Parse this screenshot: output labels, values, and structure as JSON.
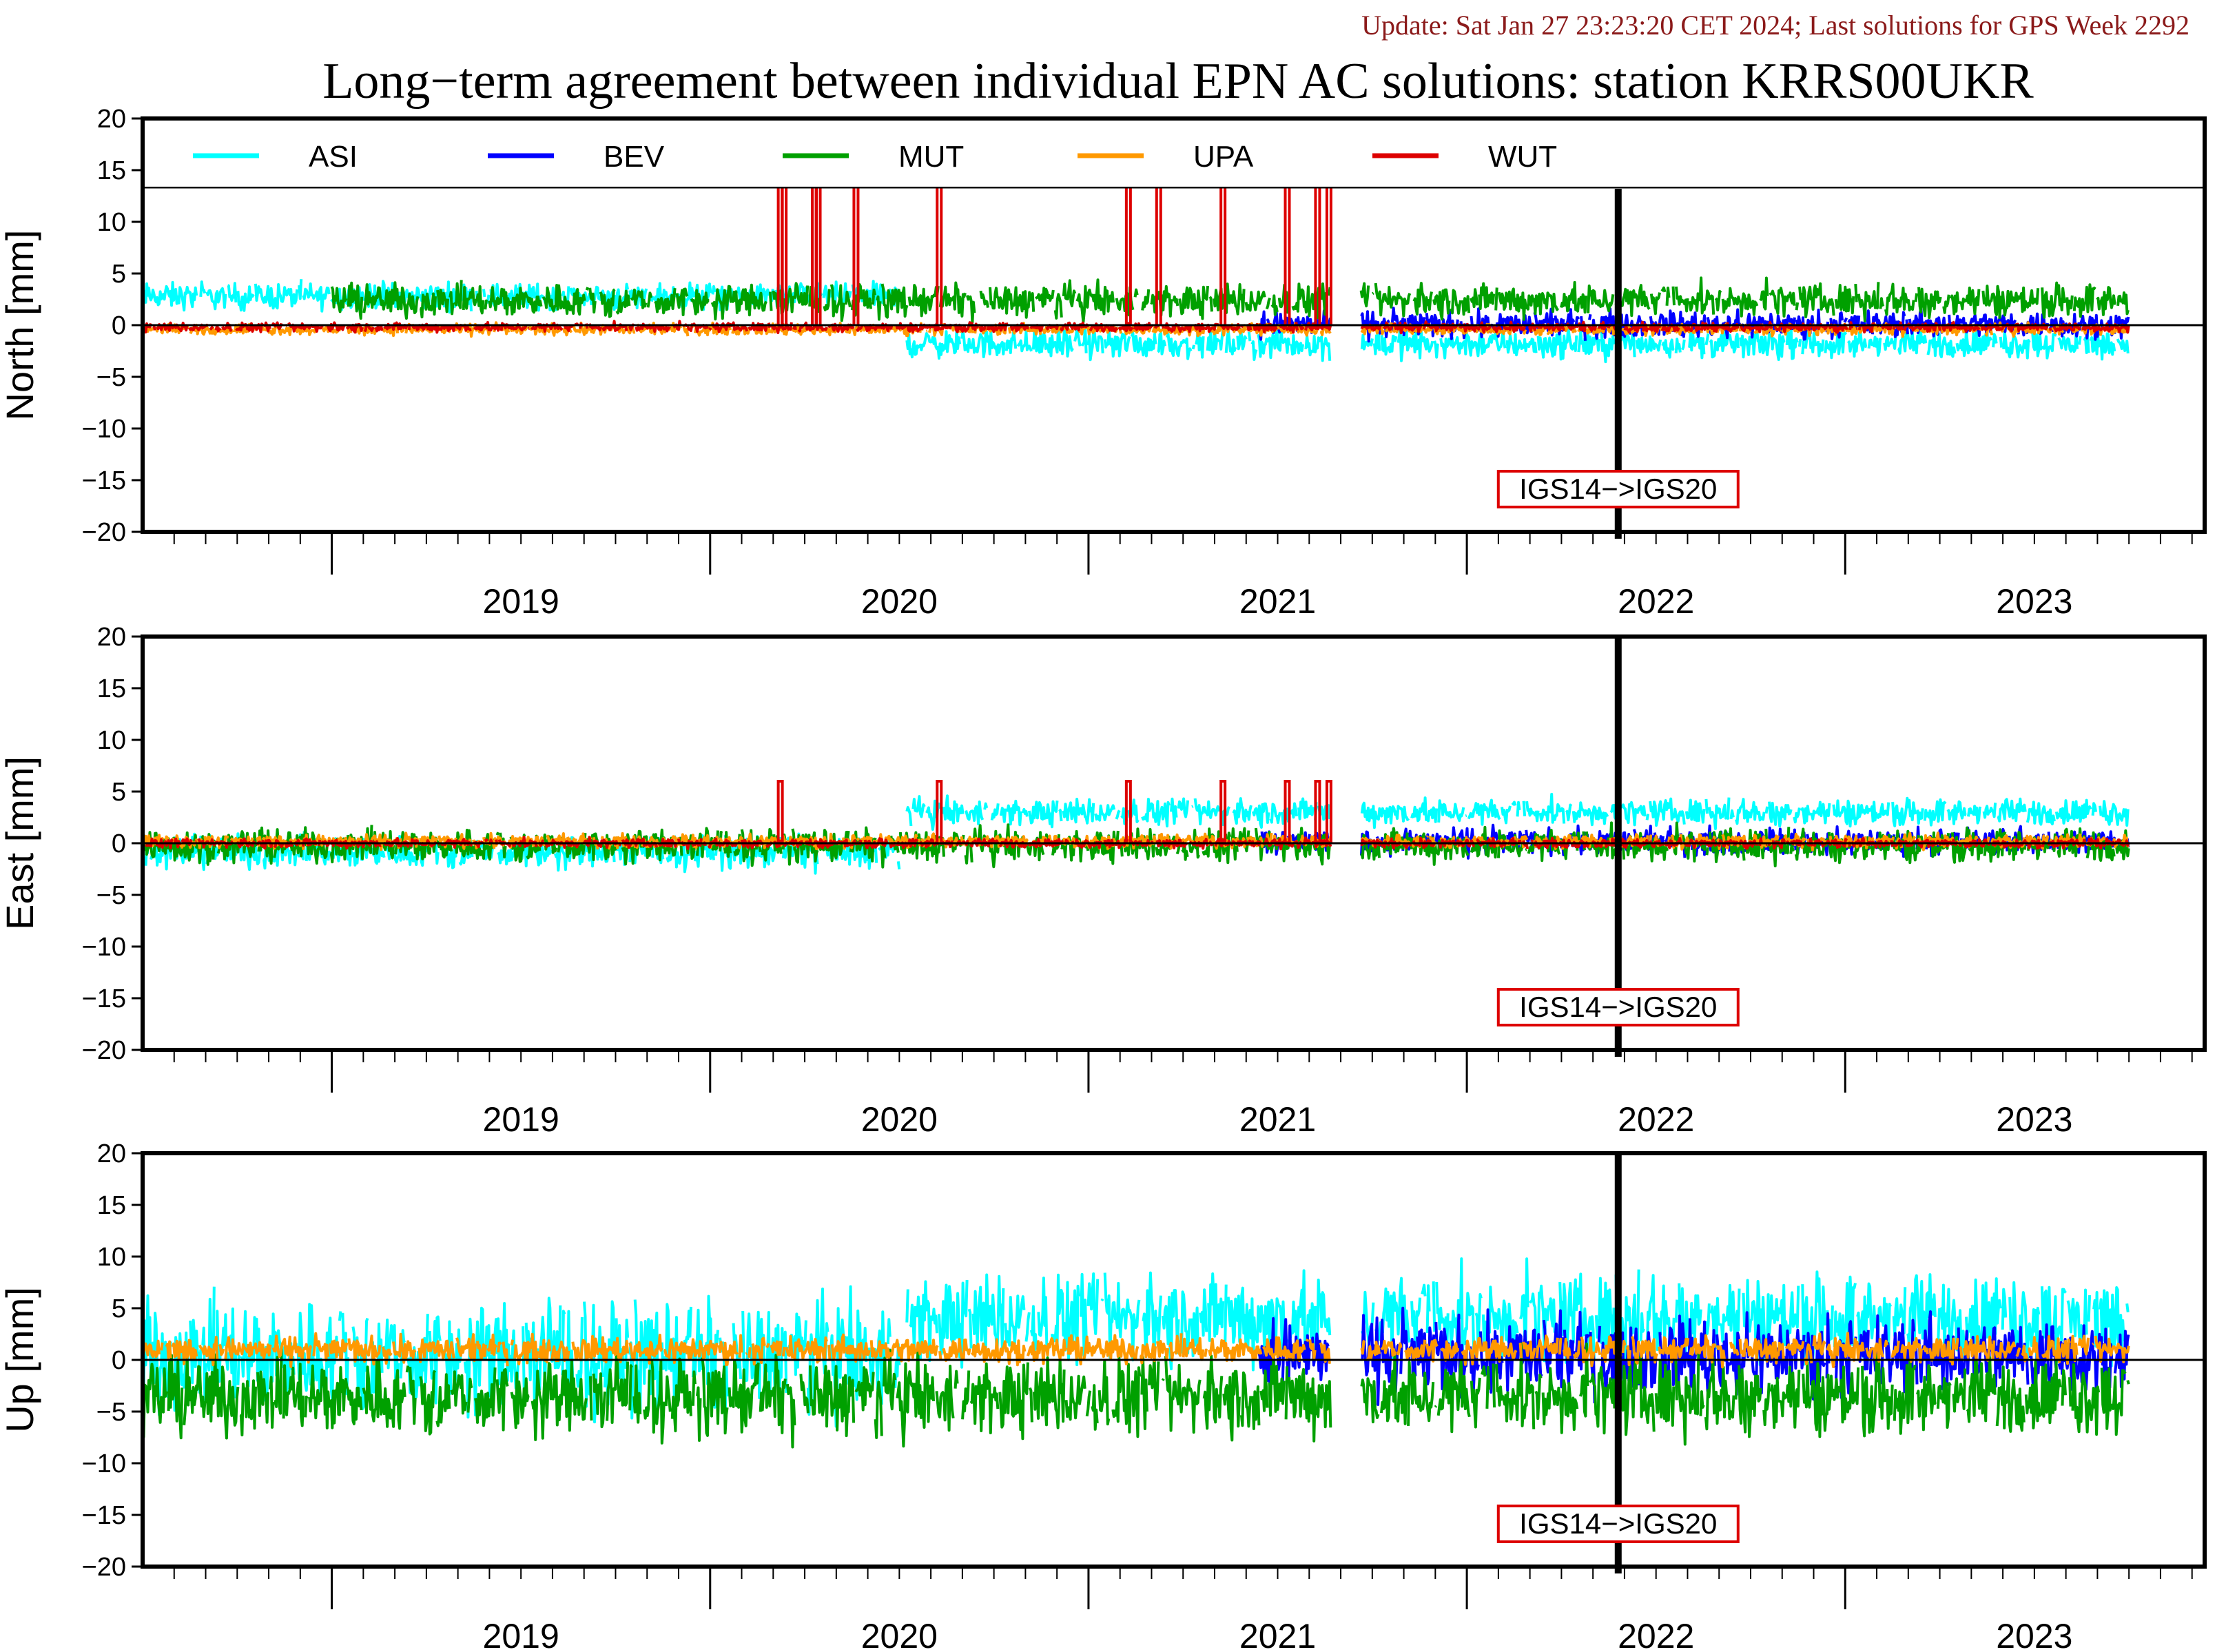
{
  "header": {
    "update": "Update: Sat Jan 27 23:23:20 CET 2024; Last solutions for GPS Week 2292",
    "title": "Long−term agreement between individual EPN AC solutions: station KRRS00UKR"
  },
  "colors": {
    "ASI": "#00ffff",
    "BEV": "#0000ff",
    "MUT": "#00a000",
    "UPA": "#ff9900",
    "WUT": "#dd0000",
    "update_text": "#8b1a1a",
    "annotation_border": "#dd0000"
  },
  "chart_data": {
    "type": "line",
    "x_unit": "year",
    "xlim": [
      2018.5,
      2023.95
    ],
    "ylim": [
      -20,
      20
    ],
    "yticks": [
      20,
      15,
      10,
      5,
      0,
      -5,
      -10,
      -15,
      -20
    ],
    "ytick_labels": [
      "20",
      "15",
      "10",
      "5",
      "0",
      "−5",
      "−10",
      "−15",
      "−20"
    ],
    "xtick_years": [
      "2019",
      "2020",
      "2021",
      "2022",
      "2023"
    ],
    "legend": [
      "ASI",
      "BEV",
      "MUT",
      "UPA",
      "WUT"
    ],
    "legend_placement": "top, inside first panel",
    "grid": false,
    "annotation": {
      "label": "IGS14−>IGS20",
      "x": 2022.4
    },
    "panels": [
      {
        "ylabel": "North [mm]",
        "series": [
          {
            "name": "ASI",
            "start": 2018.5,
            "end": 2023.75,
            "gaps": [
              [
                2020.5,
                2020.52
              ]
            ],
            "segments": [
              {
                "from": 2018.5,
                "to": 2020.5,
                "mean": 2.8,
                "amplitude": 1.2
              },
              {
                "from": 2020.52,
                "to": 2023.75,
                "mean": -1.8,
                "amplitude": 1.3
              }
            ]
          },
          {
            "name": "BEV",
            "start": 2021.45,
            "end": 2023.75,
            "segments": [
              {
                "from": 2021.45,
                "to": 2023.75,
                "mean": 0.1,
                "amplitude": 1.2
              }
            ]
          },
          {
            "name": "MUT",
            "start": 2019.0,
            "end": 2023.75,
            "segments": [
              {
                "from": 2019.0,
                "to": 2023.75,
                "mean": 2.4,
                "amplitude": 1.5
              }
            ]
          },
          {
            "name": "UPA",
            "start": 2018.5,
            "end": 2023.75,
            "segments": [
              {
                "from": 2018.5,
                "to": 2023.75,
                "mean": -0.4,
                "amplitude": 0.5
              }
            ]
          },
          {
            "name": "WUT",
            "start": 2018.5,
            "end": 2023.75,
            "segments": [
              {
                "from": 2018.5,
                "to": 2023.75,
                "mean": -0.2,
                "amplitude": 0.4
              }
            ],
            "spikes": [
              2020.18,
              2020.19,
              2020.27,
              2020.28,
              2020.38,
              2020.6,
              2021.1,
              2021.18,
              2021.35,
              2021.52,
              2021.6,
              2021.63
            ]
          }
        ]
      },
      {
        "ylabel": "East [mm]",
        "series": [
          {
            "name": "ASI",
            "start": 2018.5,
            "end": 2023.75,
            "segments": [
              {
                "from": 2018.5,
                "to": 2020.5,
                "mean": -0.8,
                "amplitude": 1.5
              },
              {
                "from": 2020.52,
                "to": 2023.75,
                "mean": 3.0,
                "amplitude": 1.2
              }
            ]
          },
          {
            "name": "BEV",
            "start": 2021.45,
            "end": 2023.75,
            "segments": [
              {
                "from": 2021.45,
                "to": 2023.75,
                "mean": 0.2,
                "amplitude": 1.2
              }
            ]
          },
          {
            "name": "MUT",
            "start": 2018.5,
            "end": 2023.75,
            "segments": [
              {
                "from": 2018.5,
                "to": 2023.75,
                "mean": -0.2,
                "amplitude": 1.5
              }
            ]
          },
          {
            "name": "UPA",
            "start": 2018.5,
            "end": 2023.75,
            "segments": [
              {
                "from": 2018.5,
                "to": 2023.75,
                "mean": 0.2,
                "amplitude": 0.6
              }
            ]
          },
          {
            "name": "WUT",
            "start": 2018.5,
            "end": 2023.75,
            "segments": [
              {
                "from": 2018.5,
                "to": 2023.75,
                "mean": 0.0,
                "amplitude": 0.4
              }
            ],
            "spikes": [
              2020.18,
              2020.6,
              2021.1,
              2021.35,
              2021.52,
              2021.6,
              2021.63
            ],
            "spike_value": 6
          }
        ]
      },
      {
        "ylabel": "Up [mm]",
        "series": [
          {
            "name": "ASI",
            "start": 2018.5,
            "end": 2023.75,
            "segments": [
              {
                "from": 2018.5,
                "to": 2020.5,
                "mean": 0.5,
                "amplitude": 5.0
              },
              {
                "from": 2020.52,
                "to": 2023.75,
                "mean": 4.0,
                "amplitude": 4.0
              }
            ]
          },
          {
            "name": "BEV",
            "start": 2021.45,
            "end": 2023.75,
            "segments": [
              {
                "from": 2021.45,
                "to": 2023.75,
                "mean": 0.5,
                "amplitude": 3.5
              }
            ]
          },
          {
            "name": "MUT",
            "start": 2018.5,
            "end": 2023.75,
            "segments": [
              {
                "from": 2018.5,
                "to": 2023.75,
                "mean": -3.5,
                "amplitude": 3.5
              }
            ]
          },
          {
            "name": "UPA",
            "start": 2018.5,
            "end": 2023.75,
            "segments": [
              {
                "from": 2018.5,
                "to": 2023.75,
                "mean": 1.0,
                "amplitude": 1.2
              }
            ]
          }
        ]
      }
    ]
  }
}
